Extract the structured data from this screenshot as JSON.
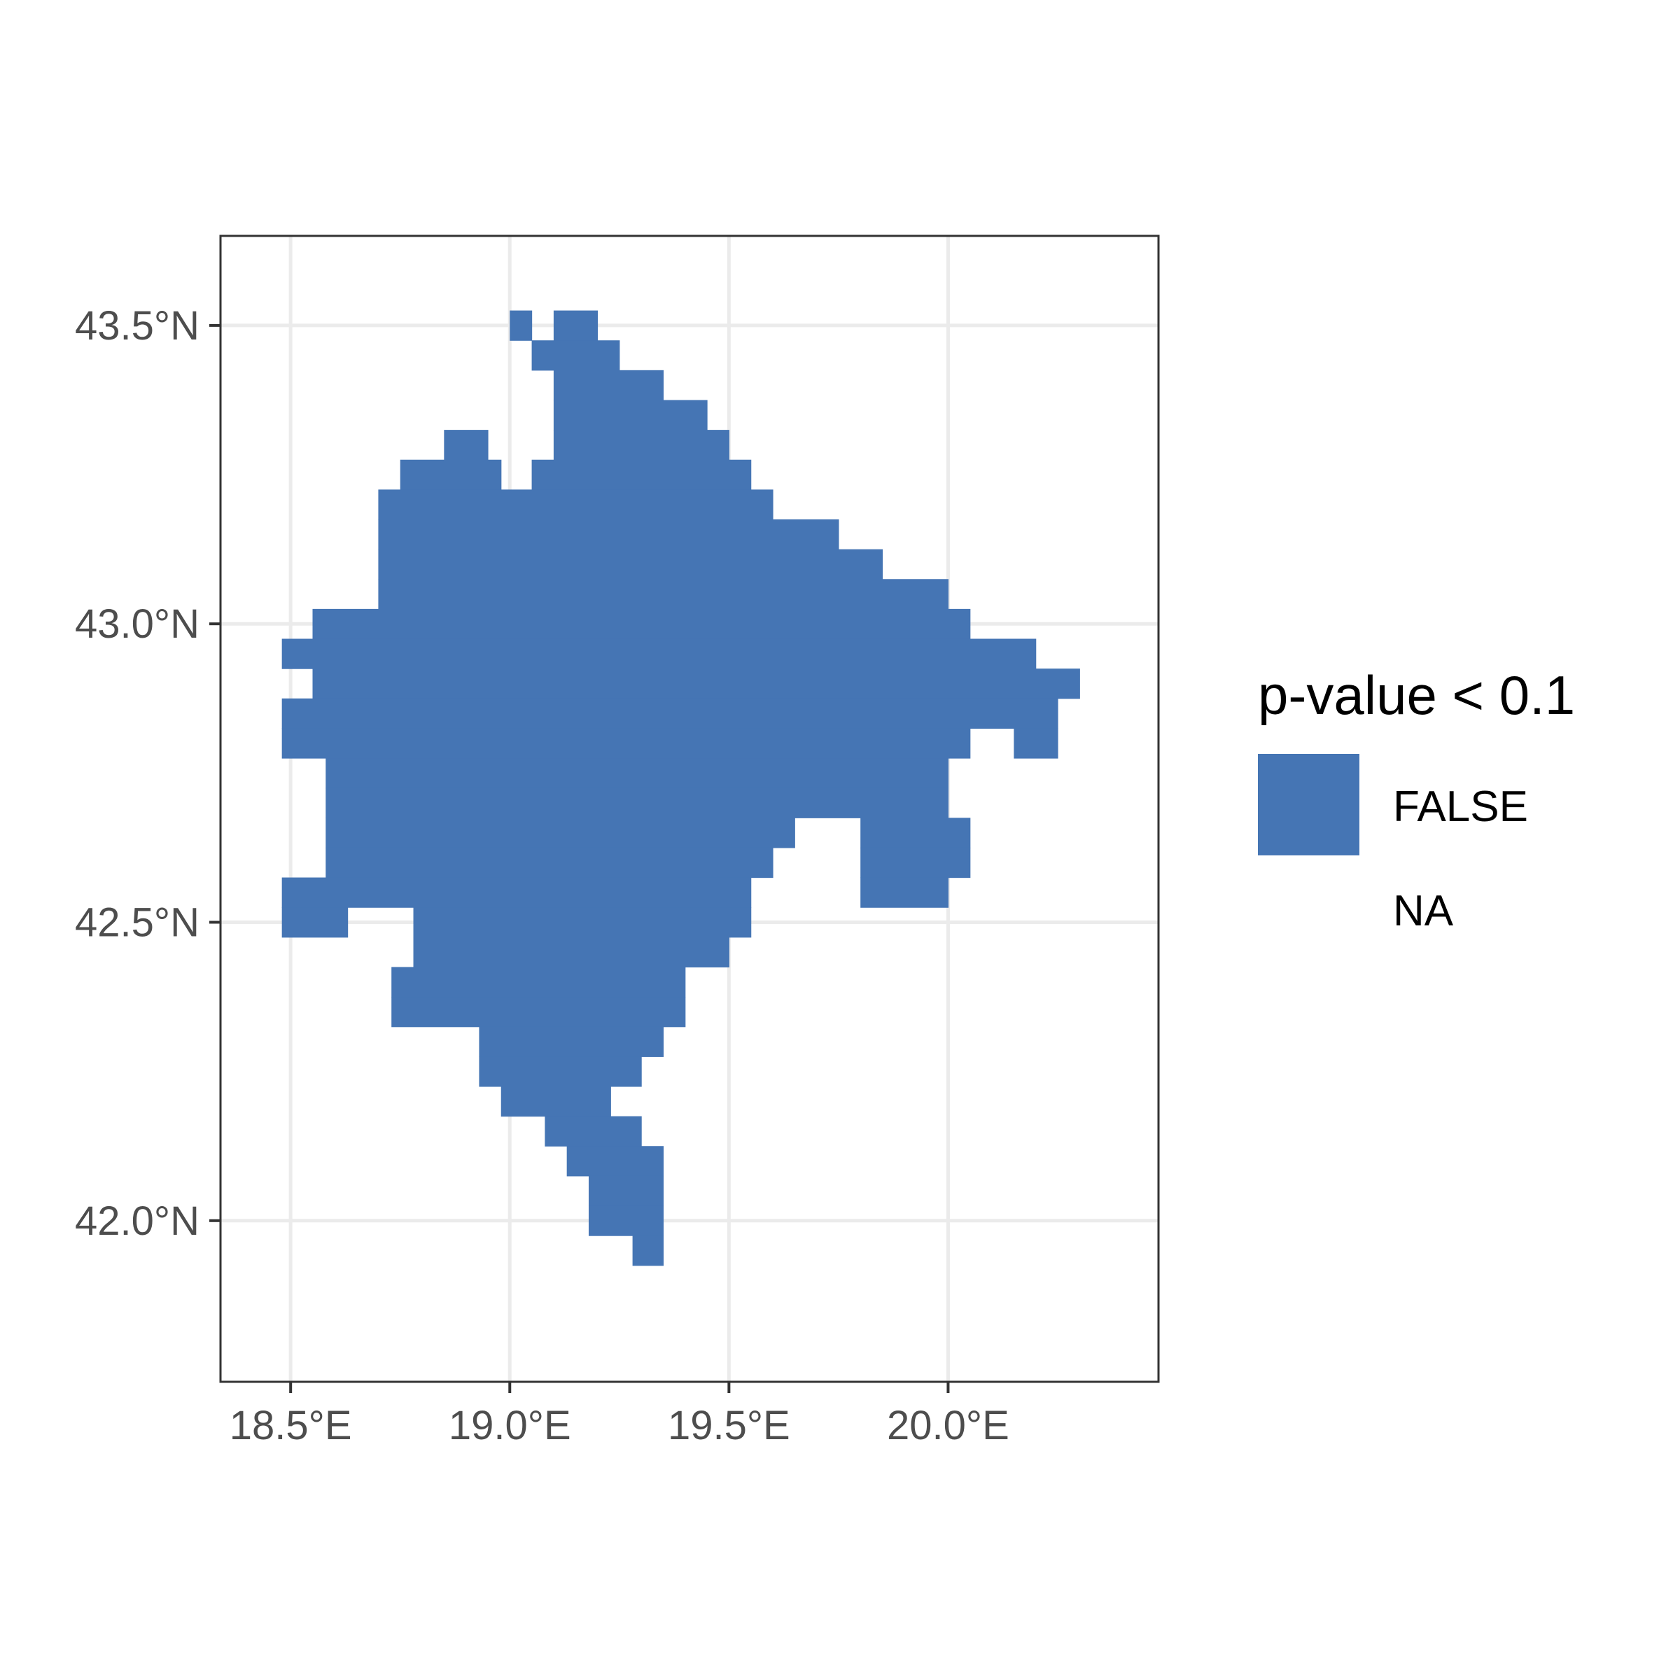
{
  "chart_data": {
    "type": "heatmap",
    "title": "",
    "xlabel": "",
    "ylabel": "",
    "xlim": [
      18.34,
      20.48
    ],
    "ylim": [
      41.73,
      43.65
    ],
    "cell_size": [
      0.05,
      0.05
    ],
    "grid": true,
    "x_ticks": [
      {
        "value": 18.5,
        "label": "18.5°E"
      },
      {
        "value": 19.0,
        "label": "19.0°E"
      },
      {
        "value": 19.5,
        "label": "19.5°E"
      },
      {
        "value": 20.0,
        "label": "20.0°E"
      }
    ],
    "y_ticks": [
      {
        "value": 42.0,
        "label": "42.0°N"
      },
      {
        "value": 42.5,
        "label": "42.5°N"
      },
      {
        "value": 43.0,
        "label": "43.0°N"
      },
      {
        "value": 43.5,
        "label": "43.5°N"
      }
    ],
    "legend": {
      "title": "p-value < 0.1",
      "placement": "right",
      "entries": [
        {
          "label": "FALSE",
          "color": "#4575B4"
        },
        {
          "label": "NA",
          "color": "none"
        }
      ]
    },
    "fill_value": "FALSE",
    "fill_color": "#4575B4",
    "rows": [
      {
        "lat": 43.5,
        "spans": [
          [
            19.0,
            19.05
          ],
          [
            19.1,
            19.2
          ]
        ]
      },
      {
        "lat": 43.45,
        "spans": [
          [
            19.05,
            19.25
          ]
        ]
      },
      {
        "lat": 43.4,
        "spans": [
          [
            19.1,
            19.35
          ]
        ]
      },
      {
        "lat": 43.35,
        "spans": [
          [
            19.1,
            19.45
          ]
        ]
      },
      {
        "lat": 43.3,
        "spans": [
          [
            18.85,
            18.95
          ],
          [
            19.1,
            19.5
          ]
        ]
      },
      {
        "lat": 43.25,
        "spans": [
          [
            18.75,
            18.98
          ],
          [
            19.05,
            19.55
          ]
        ]
      },
      {
        "lat": 43.2,
        "spans": [
          [
            18.7,
            19.6
          ]
        ]
      },
      {
        "lat": 43.15,
        "spans": [
          [
            18.7,
            19.75
          ]
        ]
      },
      {
        "lat": 43.1,
        "spans": [
          [
            18.7,
            19.85
          ]
        ]
      },
      {
        "lat": 43.05,
        "spans": [
          [
            18.7,
            20.0
          ]
        ]
      },
      {
        "lat": 43.0,
        "spans": [
          [
            18.55,
            20.05
          ]
        ]
      },
      {
        "lat": 42.95,
        "spans": [
          [
            18.48,
            20.2
          ]
        ]
      },
      {
        "lat": 42.9,
        "spans": [
          [
            18.55,
            20.3
          ]
        ]
      },
      {
        "lat": 42.85,
        "spans": [
          [
            18.48,
            20.25
          ]
        ]
      },
      {
        "lat": 42.8,
        "spans": [
          [
            18.48,
            20.05
          ],
          [
            20.15,
            20.25
          ]
        ]
      },
      {
        "lat": 42.75,
        "spans": [
          [
            18.58,
            20.0
          ]
        ]
      },
      {
        "lat": 42.7,
        "spans": [
          [
            18.58,
            20.0
          ]
        ]
      },
      {
        "lat": 42.65,
        "spans": [
          [
            18.58,
            19.65
          ],
          [
            19.8,
            20.05
          ]
        ]
      },
      {
        "lat": 42.6,
        "spans": [
          [
            18.58,
            19.6
          ],
          [
            19.8,
            20.05
          ]
        ]
      },
      {
        "lat": 42.55,
        "spans": [
          [
            18.48,
            19.55
          ],
          [
            19.8,
            20.0
          ]
        ]
      },
      {
        "lat": 42.5,
        "spans": [
          [
            18.48,
            18.63
          ],
          [
            18.78,
            19.55
          ]
        ]
      },
      {
        "lat": 42.45,
        "spans": [
          [
            18.78,
            19.5
          ]
        ]
      },
      {
        "lat": 42.4,
        "spans": [
          [
            18.73,
            19.4
          ]
        ]
      },
      {
        "lat": 42.35,
        "spans": [
          [
            18.73,
            19.4
          ]
        ]
      },
      {
        "lat": 42.3,
        "spans": [
          [
            18.93,
            19.35
          ]
        ]
      },
      {
        "lat": 42.25,
        "spans": [
          [
            18.93,
            19.3
          ]
        ]
      },
      {
        "lat": 42.2,
        "spans": [
          [
            18.98,
            19.23
          ]
        ]
      },
      {
        "lat": 42.15,
        "spans": [
          [
            19.08,
            19.3
          ]
        ]
      },
      {
        "lat": 42.1,
        "spans": [
          [
            19.13,
            19.35
          ]
        ]
      },
      {
        "lat": 42.05,
        "spans": [
          [
            19.18,
            19.35
          ]
        ]
      },
      {
        "lat": 42.0,
        "spans": [
          [
            19.18,
            19.35
          ]
        ]
      },
      {
        "lat": 41.95,
        "spans": [
          [
            19.28,
            19.35
          ]
        ]
      }
    ]
  }
}
